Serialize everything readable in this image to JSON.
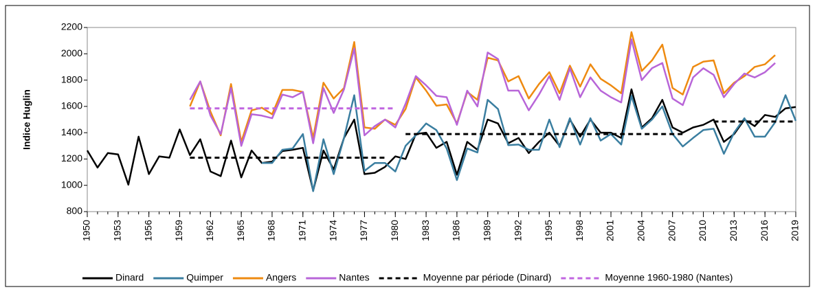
{
  "chart_data": {
    "type": "line",
    "y_label": "Indice Huglin",
    "x": [
      1950,
      1951,
      1952,
      1953,
      1954,
      1955,
      1956,
      1957,
      1958,
      1959,
      1960,
      1961,
      1962,
      1963,
      1964,
      1965,
      1966,
      1967,
      1968,
      1969,
      1970,
      1971,
      1972,
      1973,
      1974,
      1975,
      1976,
      1977,
      1978,
      1979,
      1980,
      1981,
      1982,
      1983,
      1984,
      1985,
      1986,
      1987,
      1988,
      1989,
      1990,
      1991,
      1992,
      1993,
      1994,
      1995,
      1996,
      1997,
      1998,
      1999,
      2000,
      2001,
      2002,
      2003,
      2004,
      2005,
      2006,
      2007,
      2008,
      2009,
      2010,
      2011,
      2012,
      2013,
      2014,
      2015,
      2016,
      2017,
      2018,
      2019
    ],
    "xlim": [
      1950,
      2019
    ],
    "xticks": [
      1950,
      1953,
      1956,
      1959,
      1962,
      1965,
      1968,
      1971,
      1974,
      1977,
      1980,
      1983,
      1986,
      1989,
      1992,
      1995,
      1998,
      2001,
      2004,
      2007,
      2010,
      2013,
      2016,
      2019
    ],
    "ylim": [
      800,
      2200
    ],
    "yticks": [
      800,
      1000,
      1200,
      1400,
      1600,
      1800,
      2000,
      2200
    ],
    "series": [
      {
        "name": "Dinard",
        "color": "#000000",
        "dashed": false,
        "values": [
          1265,
          1135,
          1245,
          1235,
          1005,
          1370,
          1085,
          1220,
          1210,
          1425,
          1230,
          1350,
          1105,
          1070,
          1340,
          1060,
          1265,
          1170,
          1180,
          1260,
          1270,
          1285,
          960,
          1265,
          1120,
          1360,
          1500,
          1085,
          1095,
          1140,
          1220,
          1200,
          1390,
          1400,
          1285,
          1330,
          1080,
          1330,
          1270,
          1500,
          1470,
          1320,
          1360,
          1245,
          1330,
          1400,
          1300,
          1500,
          1370,
          1500,
          1400,
          1400,
          1360,
          1730,
          1440,
          1510,
          1650,
          1440,
          1400,
          1440,
          1460,
          1500,
          1330,
          1390,
          1500,
          1450,
          1535,
          1520,
          1585,
          1595
        ]
      },
      {
        "name": "Quimper",
        "color": "#3a7ea0",
        "dashed": false,
        "values": [
          null,
          null,
          null,
          null,
          null,
          null,
          null,
          null,
          null,
          null,
          null,
          null,
          null,
          null,
          null,
          null,
          null,
          1170,
          1170,
          1270,
          1280,
          1390,
          955,
          1350,
          1085,
          1360,
          1685,
          1110,
          1170,
          1170,
          1105,
          1300,
          1380,
          1470,
          1420,
          1280,
          1040,
          1280,
          1250,
          1650,
          1580,
          1305,
          1310,
          1270,
          1270,
          1500,
          1290,
          1510,
          1310,
          1510,
          1340,
          1390,
          1310,
          1680,
          1430,
          1500,
          1600,
          1390,
          1295,
          1360,
          1420,
          1430,
          1240,
          1400,
          1510,
          1370,
          1370,
          1480,
          1685,
          1490
        ]
      },
      {
        "name": "Angers",
        "color": "#ee8a10",
        "dashed": false,
        "values": [
          null,
          null,
          null,
          null,
          null,
          null,
          null,
          null,
          null,
          null,
          1600,
          1790,
          1560,
          1380,
          1770,
          1330,
          1570,
          1590,
          1540,
          1725,
          1725,
          1710,
          1360,
          1780,
          1660,
          1740,
          2090,
          1440,
          1430,
          1500,
          1460,
          1580,
          1820,
          1720,
          1605,
          1615,
          1470,
          1710,
          1650,
          1970,
          1950,
          1790,
          1830,
          1660,
          1770,
          1860,
          1700,
          1910,
          1750,
          1920,
          1810,
          1760,
          1700,
          2165,
          1870,
          1950,
          2070,
          1740,
          1690,
          1900,
          1940,
          1950,
          1700,
          1780,
          1830,
          1900,
          1920,
          1990,
          null,
          null
        ]
      },
      {
        "name": "Nantes",
        "color": "#b865d8",
        "dashed": false,
        "values": [
          null,
          null,
          null,
          null,
          null,
          null,
          null,
          null,
          null,
          null,
          1650,
          1790,
          1530,
          1390,
          1740,
          1300,
          1540,
          1530,
          1510,
          1690,
          1670,
          1710,
          1320,
          1740,
          1550,
          1730,
          2040,
          1380,
          1450,
          1500,
          1440,
          1620,
          1830,
          1760,
          1680,
          1670,
          1460,
          1720,
          1600,
          2010,
          1960,
          1720,
          1720,
          1570,
          1690,
          1830,
          1650,
          1890,
          1670,
          1820,
          1720,
          1670,
          1630,
          2110,
          1800,
          1890,
          1930,
          1660,
          1610,
          1820,
          1890,
          1840,
          1670,
          1770,
          1850,
          1820,
          1860,
          1930,
          null,
          null
        ]
      },
      {
        "name": "Moyenne par période (Dinard)",
        "color": "#000000",
        "dashed": true,
        "values": [
          null,
          null,
          null,
          null,
          null,
          null,
          null,
          null,
          null,
          null,
          1210,
          1210,
          1210,
          1210,
          1210,
          1210,
          1210,
          1210,
          1210,
          1210,
          1210,
          1210,
          1210,
          1210,
          1210,
          1210,
          1210,
          1210,
          1210,
          1210,
          null,
          1390,
          1390,
          1390,
          1390,
          1390,
          1390,
          1390,
          1390,
          1390,
          1390,
          1390,
          1390,
          1390,
          1390,
          1390,
          1390,
          1390,
          1390,
          1390,
          1390,
          1390,
          1390,
          1390,
          1390,
          1390,
          1390,
          1390,
          1390,
          null,
          null,
          1485,
          1485,
          1485,
          1485,
          1485,
          1485,
          1485,
          1485,
          1485
        ]
      },
      {
        "name": "Moyenne 1960-1980 (Nantes)",
        "color": "#c065e0",
        "dashed": true,
        "values": [
          null,
          null,
          null,
          null,
          null,
          null,
          null,
          null,
          null,
          null,
          1585,
          1585,
          1585,
          1585,
          1585,
          1585,
          1585,
          1585,
          1585,
          1585,
          1585,
          1585,
          1585,
          1585,
          1585,
          1585,
          1585,
          1585,
          1585,
          1585,
          1585,
          null,
          null,
          null,
          null,
          null,
          null,
          null,
          null,
          null,
          null,
          null,
          null,
          null,
          null,
          null,
          null,
          null,
          null,
          null,
          null,
          null,
          null,
          null,
          null,
          null,
          null,
          null,
          null,
          null,
          null,
          null,
          null,
          null,
          null,
          null,
          null,
          null,
          null,
          null
        ]
      }
    ]
  }
}
